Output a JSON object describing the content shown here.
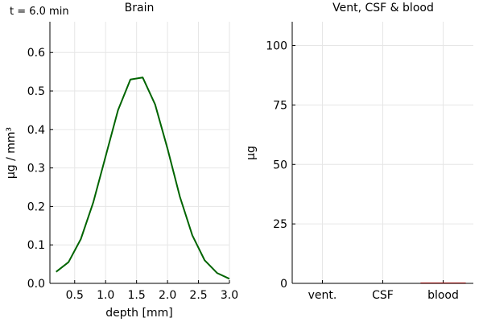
{
  "annotation": "t = 6.0 min",
  "chart_data": [
    {
      "type": "line",
      "title": "Brain",
      "xlabel": "depth [mm]",
      "ylabel": "µg / mm³",
      "xlim": [
        0.1,
        3.0
      ],
      "ylim": [
        0.0,
        0.68
      ],
      "xticks": [
        "0.5",
        "1.0",
        "1.5",
        "2.0",
        "2.5",
        "3.0"
      ],
      "yticks": [
        "0.0",
        "0.1",
        "0.2",
        "0.3",
        "0.4",
        "0.5",
        "0.6"
      ],
      "grid": true,
      "series": [
        {
          "color": "#006400",
          "x": [
            0.2,
            0.4,
            0.6,
            0.8,
            1.0,
            1.2,
            1.4,
            1.6,
            1.8,
            2.0,
            2.2,
            2.4,
            2.6,
            2.8,
            3.0
          ],
          "y": [
            0.03,
            0.055,
            0.115,
            0.21,
            0.33,
            0.45,
            0.53,
            0.535,
            0.465,
            0.35,
            0.225,
            0.125,
            0.06,
            0.027,
            0.012
          ]
        }
      ]
    },
    {
      "type": "bar",
      "title": "Vent, CSF & blood",
      "xlabel": "",
      "ylabel": "µg",
      "ylim": [
        0,
        110
      ],
      "yticks": [
        "0",
        "25",
        "50",
        "75",
        "100"
      ],
      "categories": [
        "vent.",
        "CSF",
        "blood"
      ],
      "values": [
        0,
        0,
        0.3
      ],
      "bar_color": "#8b0000",
      "grid": true
    }
  ]
}
